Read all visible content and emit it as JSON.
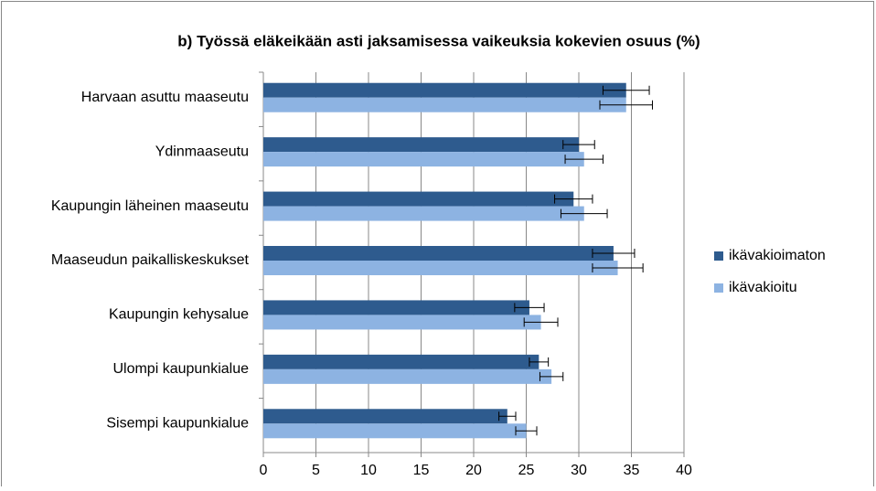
{
  "chart_data": {
    "type": "bar",
    "orientation": "horizontal",
    "title": "b) Työssä eläkeikään asti jaksamisessa vaikeuksia kokevien osuus (%)",
    "categories": [
      "Harvaan asuttu maaseutu",
      "Ydinmaaseutu",
      "Kaupungin läheinen maaseutu",
      "Maaseudun paikalliskeskukset",
      "Kaupungin kehysalue",
      "Ulompi kaupunkialue",
      "Sisempi kaupunkialue"
    ],
    "series": [
      {
        "name": "ikävakioimaton",
        "color": "#2e5b8e",
        "values": [
          34.5,
          30.0,
          29.5,
          33.3,
          25.3,
          26.2,
          23.2
        ],
        "errors": [
          2.2,
          1.5,
          1.8,
          2.0,
          1.4,
          0.9,
          0.8
        ]
      },
      {
        "name": "ikävakioitu",
        "color": "#8db3e2",
        "values": [
          34.5,
          30.5,
          30.5,
          33.7,
          26.4,
          27.4,
          25.0
        ],
        "errors": [
          2.5,
          1.8,
          2.2,
          2.4,
          1.6,
          1.1,
          1.0
        ]
      }
    ],
    "xlim": [
      0,
      40
    ],
    "xticks": [
      0,
      5,
      10,
      15,
      20,
      25,
      30,
      35,
      40
    ],
    "grid": true,
    "legend": "right"
  }
}
